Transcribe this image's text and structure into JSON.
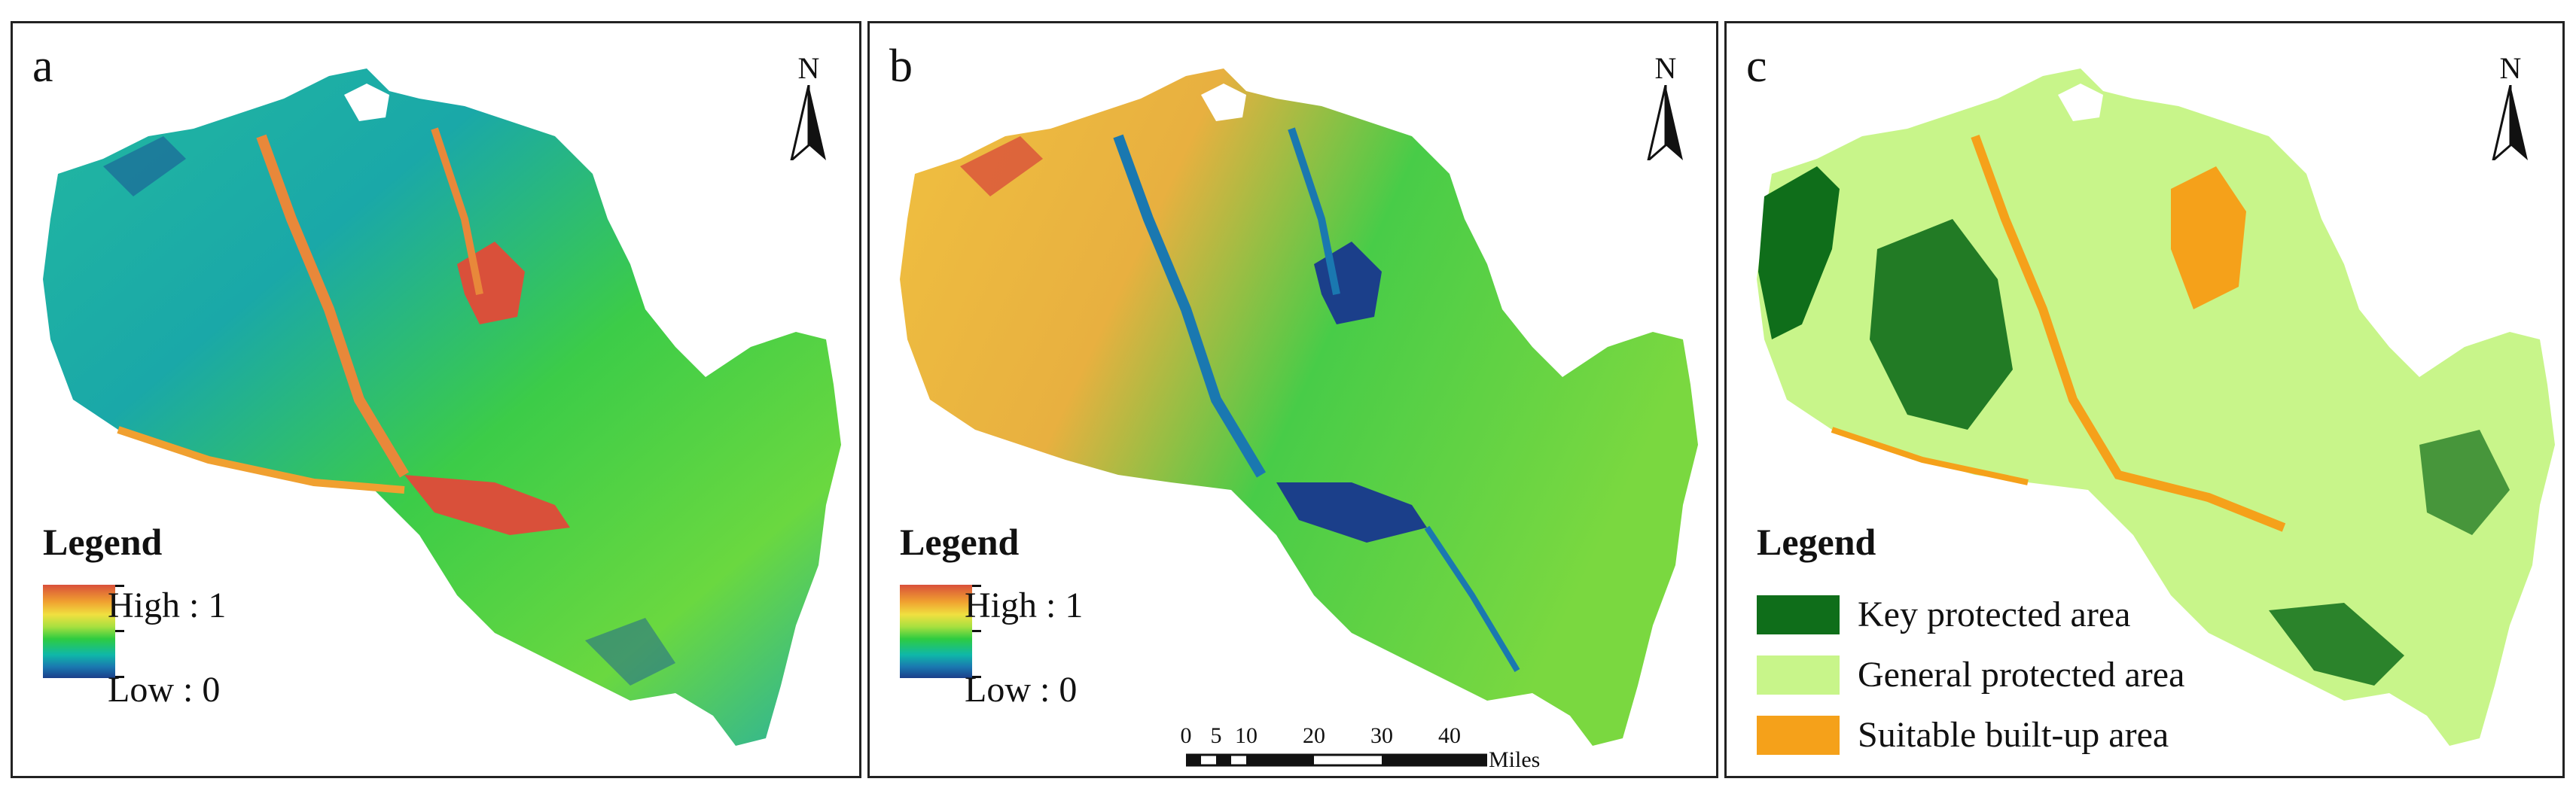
{
  "panels": [
    {
      "label": "a",
      "north_label": "N",
      "legend_title": "Legend",
      "ramp_high": "High : 1",
      "ramp_low": "Low : 0"
    },
    {
      "label": "b",
      "north_label": "N",
      "legend_title": "Legend",
      "ramp_high": "High : 1",
      "ramp_low": "Low : 0",
      "scale_bar": {
        "ticks": [
          "0",
          "5",
          "10",
          "20",
          "30",
          "40"
        ],
        "unit": "Miles"
      }
    },
    {
      "label": "c",
      "north_label": "N",
      "legend_title": "Legend",
      "classes": [
        {
          "label": "Key protected area",
          "color": "#0f6e1a"
        },
        {
          "label": "General protected area",
          "color": "#c8f58a"
        },
        {
          "label": "Suitable built-up area",
          "color": "#f5a11a"
        }
      ]
    }
  ],
  "colors": {
    "ramp_high": "#d9503a",
    "ramp_low": "#1b3f8a",
    "key_protected": "#0f6e1a",
    "general_protected": "#c8f58a",
    "suitable_builtup": "#f5a11a"
  }
}
